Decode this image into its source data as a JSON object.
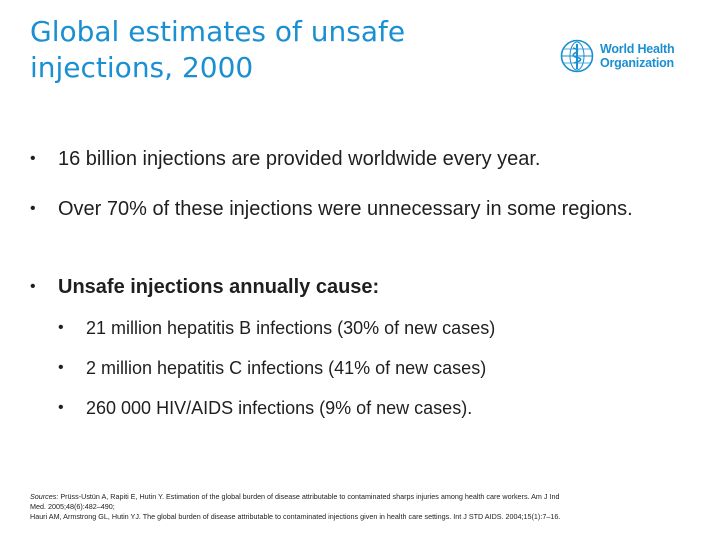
{
  "title": {
    "line1": "Global estimates of unsafe",
    "line2": "injections, 2000"
  },
  "logo": {
    "icon": "who-emblem-icon",
    "line1": "World Health",
    "line2": "Organization",
    "color": "#1a8fd1"
  },
  "bullets": [
    {
      "text": "16 billion injections are provided worldwide every year."
    },
    {
      "text": "Over 70% of these injections were unnecessary in some regions."
    },
    {
      "text": "Unsafe injections annually cause:"
    }
  ],
  "subbullets": [
    {
      "text": "21 million hepatitis B infections (30% of new cases)"
    },
    {
      "text": "2 million hepatitis C infections (41% of new cases)"
    },
    {
      "text": "260 000 HIV/AIDS infections (9% of new cases)."
    }
  ],
  "bullet_glyph": "•",
  "sources": {
    "label": "Sources:",
    "line1": " Prüss-Ustün A, Rapiti E, Hutin Y. Estimation of the global burden of disease attributable to contaminated sharps injuries among health care workers. Am J Ind",
    "line2": "Med. 2005;48(6):482–490;",
    "line3": "Hauri AM, Armstrong GL, Hutin YJ. The global burden of disease attributable to contaminated injections given in health care settings. Int J STD AIDS. 2004;15(1):7–16."
  }
}
